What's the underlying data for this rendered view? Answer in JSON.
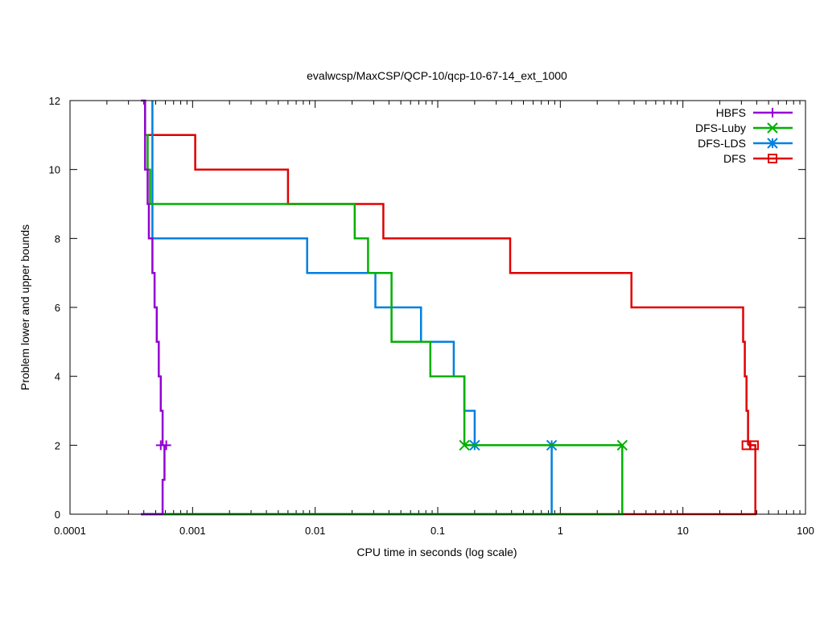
{
  "chart_data": {
    "type": "line",
    "title": "evalwcsp/MaxCSP/QCP-10/qcp-10-67-14_ext_1000",
    "xlabel": "CPU time in seconds (log scale)",
    "ylabel": "Problem lower and upper bounds",
    "xscale": "log",
    "xlim": [
      0.0001,
      100
    ],
    "ylim": [
      0,
      12
    ],
    "x_ticks": [
      0.0001,
      0.001,
      0.01,
      0.1,
      1,
      10,
      100
    ],
    "x_tick_labels": [
      "0.0001",
      "0.001",
      "0.01",
      "0.1",
      "1",
      "10",
      "100"
    ],
    "y_ticks": [
      0,
      2,
      4,
      6,
      8,
      10,
      12
    ],
    "y_tick_labels": [
      "0",
      "2",
      "4",
      "6",
      "8",
      "10",
      "12"
    ],
    "legend_position": "top-right",
    "series": [
      {
        "name": "HBFS",
        "color": "#9400d3",
        "marker": "plus",
        "upper": [
          [
            0.00038,
            12
          ],
          [
            0.00041,
            12
          ],
          [
            0.00041,
            10
          ],
          [
            0.00043,
            10
          ],
          [
            0.00043,
            9
          ],
          [
            0.00044,
            9
          ],
          [
            0.00044,
            8
          ],
          [
            0.00047,
            8
          ],
          [
            0.00047,
            7
          ],
          [
            0.00049,
            7
          ],
          [
            0.00049,
            6
          ],
          [
            0.00051,
            6
          ],
          [
            0.00051,
            5
          ],
          [
            0.00053,
            5
          ],
          [
            0.00053,
            4
          ],
          [
            0.00055,
            4
          ],
          [
            0.00055,
            3
          ],
          [
            0.00057,
            3
          ],
          [
            0.00057,
            2
          ]
        ],
        "lower": [
          [
            0.00038,
            0
          ],
          [
            0.00057,
            0
          ],
          [
            0.00057,
            1
          ],
          [
            0.00059,
            1
          ],
          [
            0.00059,
            2
          ]
        ],
        "markers": [
          [
            0.00055,
            2
          ],
          [
            0.00061,
            2
          ]
        ]
      },
      {
        "name": "DFS-Luby",
        "color": "#00b000",
        "marker": "x",
        "upper": [
          [
            0.00041,
            12
          ],
          [
            0.00041,
            11
          ],
          [
            0.00043,
            11
          ],
          [
            0.00043,
            10
          ],
          [
            0.00045,
            10
          ],
          [
            0.00045,
            9
          ],
          [
            0.021,
            9
          ],
          [
            0.021,
            8
          ],
          [
            0.027,
            8
          ],
          [
            0.027,
            7
          ],
          [
            0.042,
            7
          ],
          [
            0.042,
            5
          ],
          [
            0.087,
            5
          ],
          [
            0.087,
            4
          ],
          [
            0.165,
            4
          ],
          [
            0.165,
            2
          ],
          [
            3.2,
            2
          ]
        ],
        "lower": [
          [
            0.00038,
            0
          ],
          [
            3.2,
            0
          ],
          [
            3.2,
            2
          ]
        ],
        "markers": [
          [
            0.165,
            2
          ],
          [
            3.2,
            2
          ]
        ]
      },
      {
        "name": "DFS-LDS",
        "color": "#0080e0",
        "marker": "star",
        "upper": [
          [
            0.00047,
            12
          ],
          [
            0.00047,
            8
          ],
          [
            0.0086,
            8
          ],
          [
            0.0086,
            7
          ],
          [
            0.031,
            7
          ],
          [
            0.031,
            6
          ],
          [
            0.073,
            6
          ],
          [
            0.073,
            5
          ],
          [
            0.135,
            5
          ],
          [
            0.135,
            4
          ],
          [
            0.165,
            4
          ],
          [
            0.165,
            3
          ],
          [
            0.2,
            3
          ],
          [
            0.2,
            2
          ],
          [
            0.85,
            2
          ]
        ],
        "lower": [
          [
            0.00038,
            0
          ],
          [
            0.85,
            0
          ],
          [
            0.85,
            2
          ]
        ],
        "markers": [
          [
            0.2,
            2
          ],
          [
            0.85,
            2
          ]
        ]
      },
      {
        "name": "DFS",
        "color": "#e00000",
        "marker": "square",
        "upper": [
          [
            0.00041,
            11
          ],
          [
            0.00105,
            11
          ],
          [
            0.00105,
            10
          ],
          [
            0.006,
            10
          ],
          [
            0.006,
            9
          ],
          [
            0.036,
            9
          ],
          [
            0.036,
            8
          ],
          [
            0.39,
            8
          ],
          [
            0.39,
            7
          ],
          [
            3.8,
            7
          ],
          [
            3.8,
            6
          ],
          [
            31,
            6
          ],
          [
            31,
            5
          ],
          [
            32,
            5
          ],
          [
            32,
            4
          ],
          [
            33,
            4
          ],
          [
            33,
            3
          ],
          [
            34,
            3
          ],
          [
            34,
            2
          ]
        ],
        "lower": [
          [
            0.00038,
            0
          ],
          [
            39,
            0
          ],
          [
            39,
            2
          ],
          [
            34,
            2
          ]
        ],
        "markers": [
          [
            33,
            2
          ],
          [
            38,
            2
          ]
        ]
      }
    ]
  }
}
